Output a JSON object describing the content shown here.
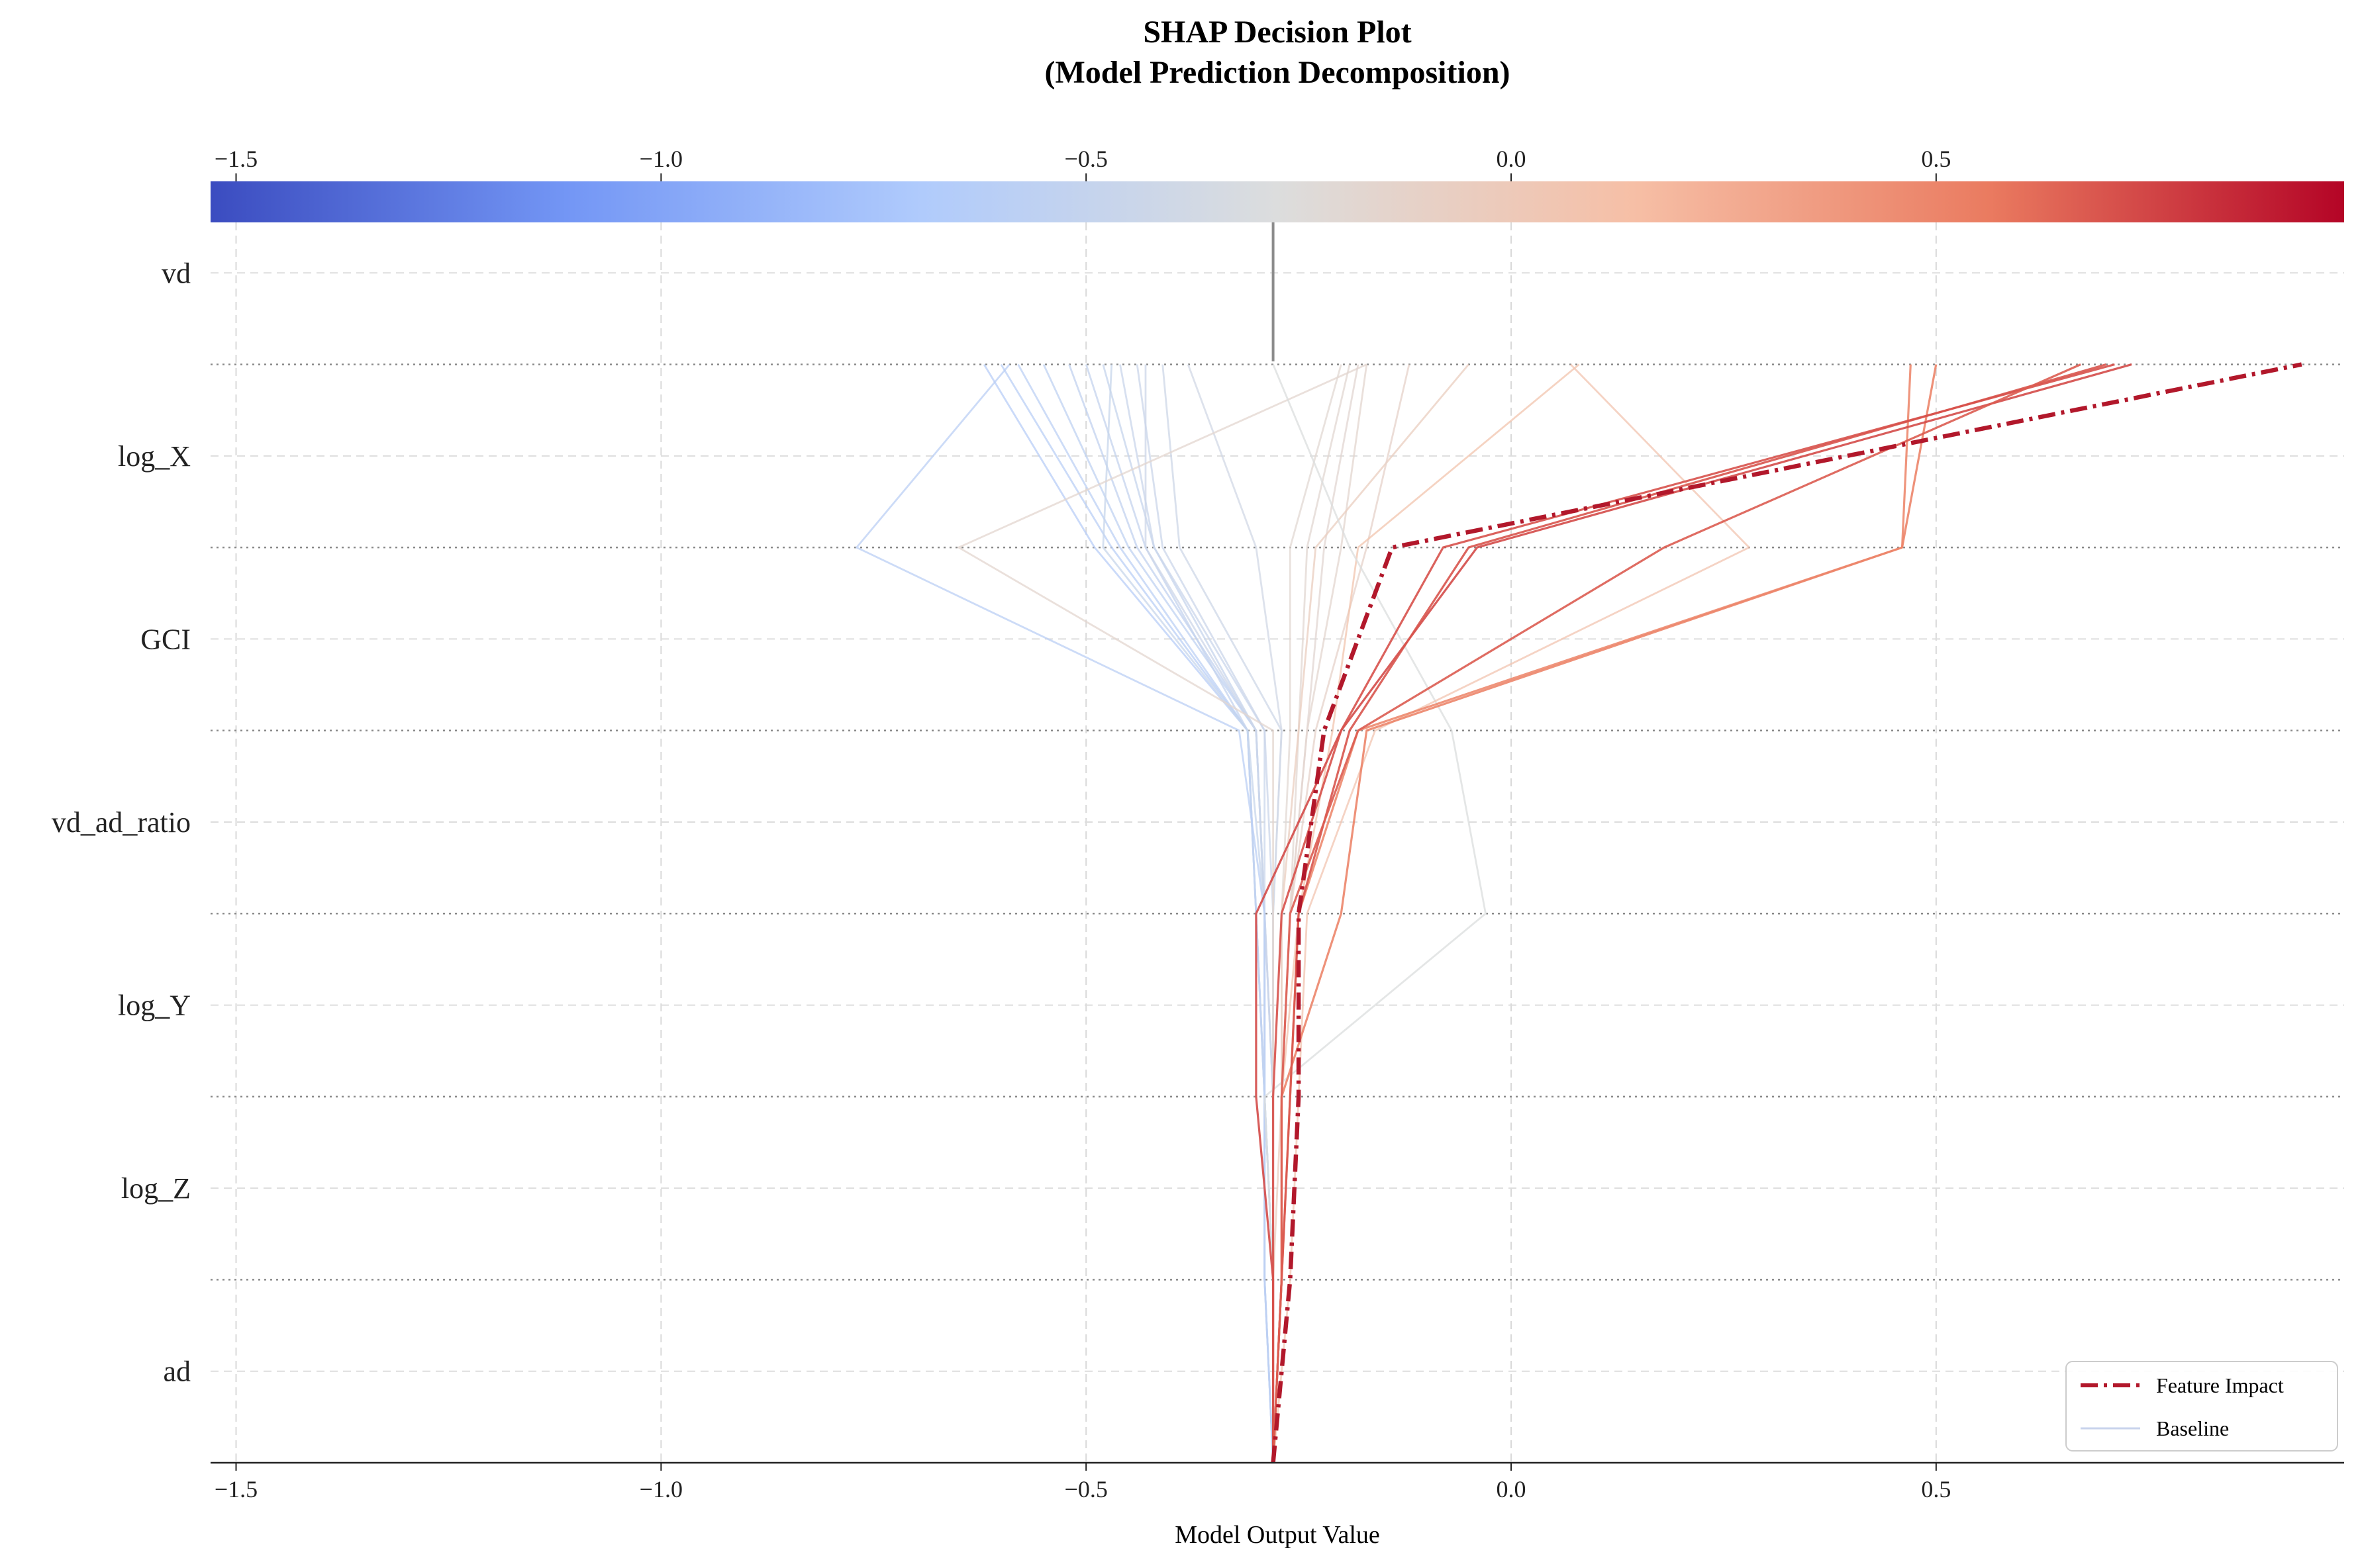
{
  "chart_data": {
    "type": "line",
    "title": "SHAP Decision Plot\n(Model Prediction Decomposition)",
    "title_lines": [
      "SHAP Decision Plot",
      "(Model Prediction Decomposition)"
    ],
    "xlabel": "Model Output Value",
    "ylabel": "",
    "xlim": [
      -1.53,
      0.98
    ],
    "x_ticks": [
      -1.5,
      -1.0,
      -0.5,
      0.0,
      0.5
    ],
    "x_tick_labels": [
      "−1.5",
      "−1.0",
      "−0.5",
      "0.0",
      "0.5"
    ],
    "features_top_to_bottom": [
      "vd",
      "log_X",
      "GCI",
      "vd_ad_ratio",
      "log_Y",
      "log_Z",
      "ad"
    ],
    "base_value": -0.28,
    "colormap": "coolwarm",
    "colormap_stops": [
      "#3b4cc0",
      "#7396f5",
      "#b0cbfc",
      "#dcdddd",
      "#f6bfa6",
      "#ea7b60",
      "#b40426"
    ],
    "grid": true,
    "legend": {
      "placement": "lower-right",
      "entries": [
        {
          "label": "Feature Impact",
          "style": "dash-dot",
          "color": "#b2182b"
        },
        {
          "label": "Baseline",
          "style": "solid",
          "color": "#c9d3ec"
        }
      ]
    },
    "highlight_series": {
      "name": "Feature Impact",
      "values": [
        -0.28,
        -0.26,
        -0.25,
        -0.25,
        -0.22,
        -0.14,
        0.93
      ]
    },
    "series": [
      {
        "values": [
          -0.28,
          -0.29,
          -0.29,
          -0.3,
          -0.31,
          -0.49,
          -0.62
        ]
      },
      {
        "values": [
          -0.28,
          -0.29,
          -0.29,
          -0.3,
          -0.31,
          -0.47,
          -0.6
        ]
      },
      {
        "values": [
          -0.28,
          -0.28,
          -0.29,
          -0.3,
          -0.31,
          -0.46,
          -0.58
        ]
      },
      {
        "values": [
          -0.28,
          -0.28,
          -0.29,
          -0.29,
          -0.3,
          -0.45,
          -0.55
        ]
      },
      {
        "values": [
          -0.28,
          -0.28,
          -0.29,
          -0.29,
          -0.3,
          -0.44,
          -0.52
        ]
      },
      {
        "values": [
          -0.28,
          -0.29,
          -0.29,
          -0.3,
          -0.31,
          -0.43,
          -0.5
        ]
      },
      {
        "values": [
          -0.28,
          -0.28,
          -0.28,
          -0.29,
          -0.3,
          -0.42,
          -0.48
        ]
      },
      {
        "values": [
          -0.28,
          -0.28,
          -0.28,
          -0.29,
          -0.29,
          -0.42,
          -0.46
        ]
      },
      {
        "values": [
          -0.28,
          -0.28,
          -0.28,
          -0.28,
          -0.29,
          -0.41,
          -0.44
        ]
      },
      {
        "values": [
          -0.28,
          -0.28,
          -0.29,
          -0.29,
          -0.31,
          -0.48,
          -0.47
        ]
      },
      {
        "values": [
          -0.28,
          -0.28,
          -0.28,
          -0.29,
          -0.3,
          -0.43,
          -0.43
        ]
      },
      {
        "values": [
          -0.28,
          -0.29,
          -0.29,
          -0.29,
          -0.32,
          -0.77,
          -0.59
        ]
      },
      {
        "values": [
          -0.28,
          -0.28,
          -0.28,
          -0.28,
          -0.27,
          -0.39,
          -0.41
        ]
      },
      {
        "values": [
          -0.28,
          -0.28,
          -0.28,
          -0.28,
          -0.27,
          -0.3,
          -0.38
        ]
      },
      {
        "values": [
          -0.28,
          -0.28,
          -0.28,
          -0.28,
          -0.28,
          -0.65,
          -0.17
        ]
      },
      {
        "values": [
          -0.28,
          -0.27,
          -0.27,
          -0.27,
          -0.26,
          -0.26,
          -0.2
        ]
      },
      {
        "values": [
          -0.28,
          -0.27,
          -0.27,
          -0.26,
          -0.25,
          -0.24,
          -0.19
        ]
      },
      {
        "values": [
          -0.28,
          -0.27,
          -0.27,
          -0.26,
          -0.24,
          -0.22,
          -0.18
        ]
      },
      {
        "values": [
          -0.28,
          -0.27,
          -0.27,
          -0.26,
          -0.24,
          -0.2,
          -0.17
        ]
      },
      {
        "values": [
          -0.28,
          -0.28,
          -0.27,
          -0.27,
          -0.25,
          -0.23,
          -0.05
        ]
      },
      {
        "values": [
          -0.28,
          -0.27,
          -0.27,
          -0.26,
          -0.23,
          -0.17,
          -0.12
        ]
      },
      {
        "values": [
          -0.28,
          -0.27,
          -0.27,
          -0.25,
          -0.21,
          -0.18,
          0.08
        ]
      },
      {
        "values": [
          -0.28,
          -0.28,
          -0.29,
          -0.03,
          -0.07,
          -0.19,
          -0.28
        ]
      },
      {
        "values": [
          -0.28,
          -0.26,
          -0.25,
          -0.24,
          -0.16,
          0.28,
          0.07
        ]
      },
      {
        "values": [
          -0.28,
          -0.27,
          -0.26,
          -0.25,
          -0.18,
          0.46,
          0.47
        ]
      },
      {
        "values": [
          -0.28,
          -0.27,
          -0.27,
          -0.2,
          -0.17,
          0.46,
          0.5
        ]
      },
      {
        "values": [
          -0.28,
          -0.28,
          -0.3,
          -0.3,
          -0.2,
          -0.04,
          0.73
        ]
      },
      {
        "values": [
          -0.28,
          -0.27,
          -0.26,
          -0.25,
          -0.19,
          -0.05,
          0.7
        ]
      },
      {
        "values": [
          -0.28,
          -0.28,
          -0.28,
          -0.27,
          -0.2,
          -0.08,
          0.71
        ]
      },
      {
        "values": [
          -0.28,
          -0.27,
          -0.27,
          -0.26,
          -0.18,
          0.18,
          0.67
        ]
      }
    ]
  }
}
